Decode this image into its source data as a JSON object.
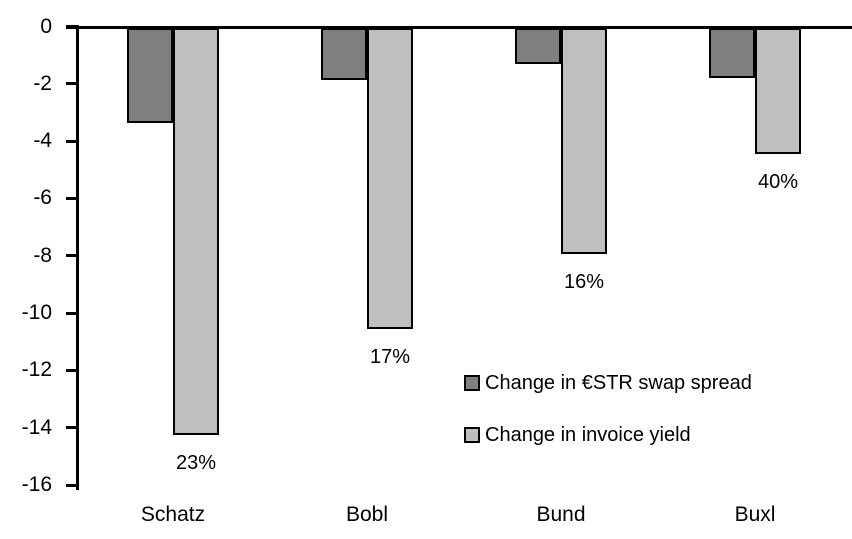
{
  "chart_data": {
    "type": "bar",
    "title": "",
    "xlabel": "",
    "ylabel": "",
    "categories": [
      "Schatz",
      "Bobl",
      "Bund",
      "Buxl"
    ],
    "series": [
      {
        "name": "Change in €STR swap spread",
        "color": "#7f7f7f",
        "values": [
          -3.3,
          -1.8,
          -1.25,
          -1.75
        ]
      },
      {
        "name": "Change in invoice yield",
        "color": "#bfbfbf",
        "values": [
          -14.2,
          -10.5,
          -7.9,
          -4.4
        ]
      }
    ],
    "bar_labels": {
      "series": "Change in invoice yield",
      "values": [
        "23%",
        "17%",
        "16%",
        "40%"
      ]
    },
    "yticks": [
      0,
      -2,
      -4,
      -6,
      -8,
      -10,
      -12,
      -14,
      -16
    ],
    "ylim": [
      -16,
      0
    ],
    "grid": false,
    "legend_position": "inside-right",
    "bar_border_color": "#000000",
    "axis_color": "#000000",
    "background_color": "#ffffff"
  }
}
